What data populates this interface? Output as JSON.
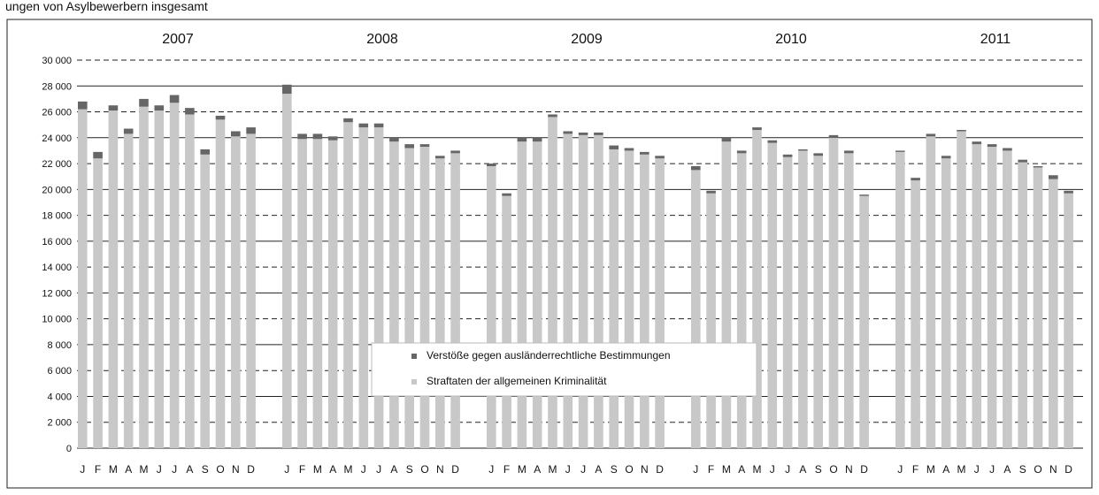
{
  "page": {
    "title": "ungen von Asylbewerbern insgesamt"
  },
  "chart_data": {
    "type": "bar",
    "stacked": true,
    "groups": [
      "2007",
      "2008",
      "2009",
      "2010",
      "2011"
    ],
    "months": [
      "J",
      "F",
      "M",
      "A",
      "M",
      "J",
      "J",
      "A",
      "S",
      "O",
      "N",
      "D"
    ],
    "ylim": [
      0,
      30000
    ],
    "yticks": [
      "0",
      "2 000",
      "4 000",
      "6 000",
      "8 000",
      "10 000",
      "12 000",
      "14 000",
      "16 000",
      "18 000",
      "20 000",
      "22 000",
      "24 000",
      "26 000",
      "28 000",
      "30 000"
    ],
    "grid": true,
    "legend_position": "bottom-center",
    "series": [
      {
        "name": "Straftaten der allgemeinen Kriminalität",
        "color": "#c8c8c8",
        "values": [
          26200,
          22400,
          26100,
          24300,
          26400,
          26100,
          26700,
          25800,
          22700,
          25400,
          24100,
          24300,
          27400,
          23900,
          23900,
          23800,
          25200,
          24800,
          24800,
          23700,
          23200,
          23300,
          22400,
          22800,
          21800,
          19500,
          23700,
          23700,
          25600,
          24300,
          24200,
          24200,
          23100,
          23000,
          22700,
          22400,
          21500,
          19700,
          23700,
          22800,
          24600,
          23600,
          22500,
          23000,
          22600,
          24000,
          22800,
          19500,
          22900,
          20700,
          24100,
          22400,
          24500,
          23500,
          23300,
          23000,
          22100,
          21700,
          20800,
          19700
        ]
      },
      {
        "name": "Verstöße gegen ausländerrechtliche Bestimmungen",
        "color": "#666666",
        "values": [
          600,
          500,
          400,
          400,
          600,
          400,
          600,
          500,
          400,
          300,
          400,
          500,
          700,
          400,
          400,
          300,
          300,
          300,
          300,
          300,
          300,
          200,
          200,
          200,
          200,
          200,
          300,
          300,
          200,
          200,
          200,
          200,
          300,
          200,
          200,
          200,
          300,
          200,
          300,
          200,
          200,
          200,
          200,
          100,
          200,
          200,
          200,
          100,
          100,
          200,
          200,
          200,
          100,
          200,
          200,
          200,
          200,
          100,
          300,
          200
        ]
      }
    ],
    "legend": [
      {
        "label": "Verstöße gegen ausländerrechtliche Bestimmungen",
        "color": "#666666"
      },
      {
        "label": "Straftaten der allgemeinen Kriminalität",
        "color": "#c8c8c8"
      }
    ]
  }
}
